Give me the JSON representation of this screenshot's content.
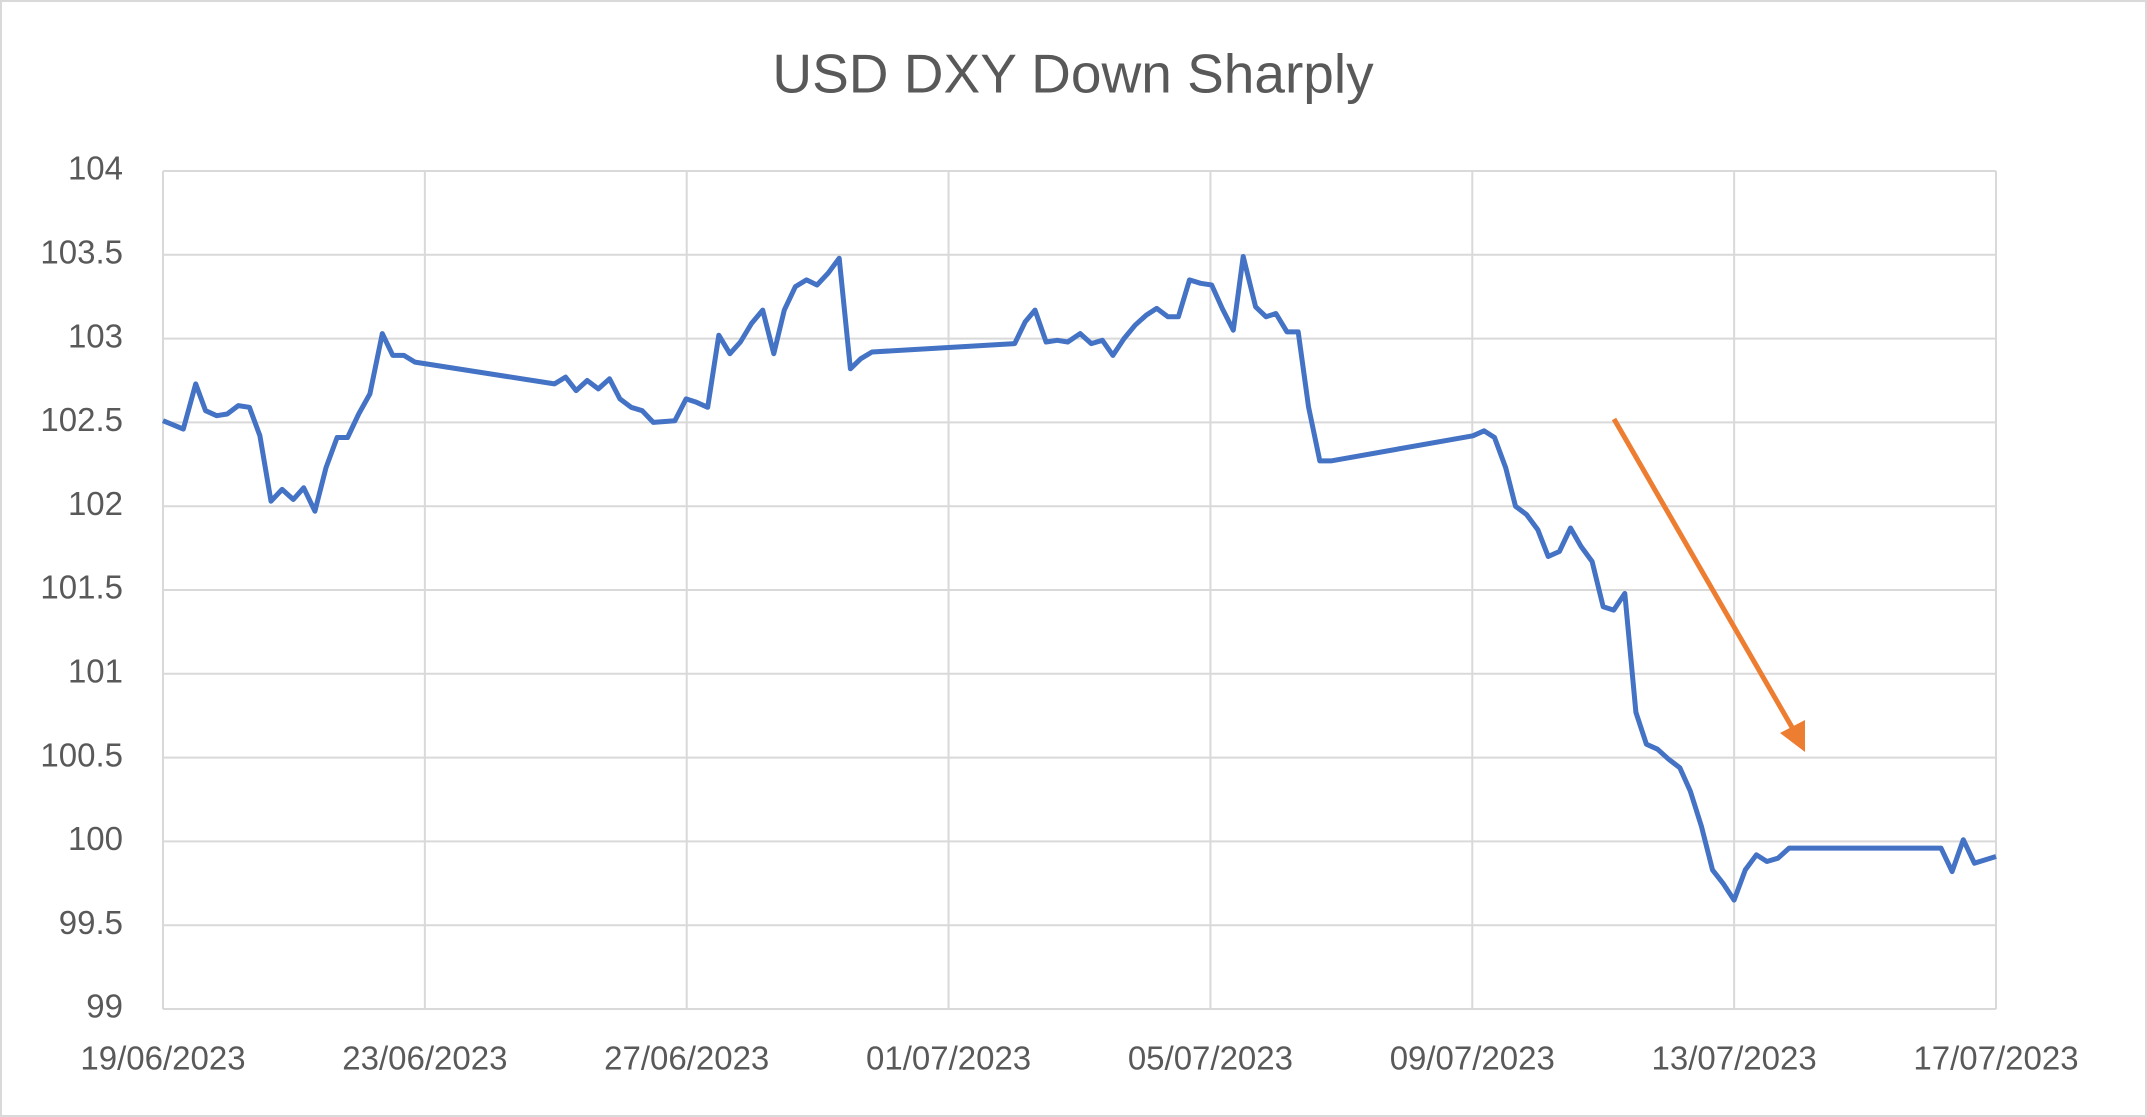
{
  "chart_data": {
    "type": "line",
    "title": "USD DXY Down Sharply",
    "color": "#4472c4",
    "grid": true,
    "x": [
      45096.0,
      45096.31,
      45096.5,
      45096.65,
      45096.82,
      45096.98,
      45097.15,
      45097.32,
      45097.48,
      45097.65,
      45097.82,
      45097.99,
      45098.15,
      45098.32,
      45098.49,
      45098.66,
      45098.82,
      45098.99,
      45099.16,
      45099.35,
      45099.51,
      45099.68,
      45099.85,
      45101.98,
      45102.15,
      45102.31,
      45102.48,
      45102.65,
      45102.82,
      45102.98,
      45103.15,
      45103.32,
      45103.49,
      45103.82,
      45103.99,
      45104.15,
      45104.32,
      45104.49,
      45104.66,
      45104.82,
      45104.99,
      45105.16,
      45105.33,
      45105.49,
      45105.66,
      45105.83,
      45105.99,
      45106.16,
      45106.33,
      45106.5,
      45106.66,
      45106.83,
      45109.01,
      45109.17,
      45109.32,
      45109.49,
      45109.66,
      45109.82,
      45110.01,
      45110.18,
      45110.35,
      45110.51,
      45110.68,
      45110.85,
      45111.02,
      45111.18,
      45111.35,
      45111.51,
      45111.68,
      45111.85,
      45112.02,
      45112.18,
      45112.35,
      45112.5,
      45112.69,
      45112.85,
      45113.0,
      45113.17,
      45113.34,
      45113.5,
      45113.67,
      45113.84,
      45116.01,
      45116.18,
      45116.34,
      45116.51,
      45116.66,
      45116.83,
      45117.0,
      45117.16,
      45117.33,
      45117.5,
      45117.66,
      45117.83,
      45118.0,
      45118.16,
      45118.33,
      45118.5,
      45118.66,
      45118.83,
      45119.0,
      45119.17,
      45119.33,
      45119.5,
      45119.67,
      45119.83,
      45120.0,
      45120.17,
      45120.34,
      45120.5,
      45120.67,
      45120.84,
      45123.16,
      45123.33,
      45123.5,
      45123.67,
      45124.0
    ],
    "values": [
      102.51,
      102.46,
      102.73,
      102.57,
      102.54,
      102.55,
      102.6,
      102.59,
      102.42,
      102.03,
      102.1,
      102.04,
      102.11,
      101.97,
      102.23,
      102.41,
      102.41,
      102.55,
      102.67,
      103.03,
      102.9,
      102.9,
      102.86,
      102.73,
      102.77,
      102.69,
      102.75,
      102.7,
      102.76,
      102.64,
      102.59,
      102.57,
      102.5,
      102.51,
      102.64,
      102.62,
      102.59,
      103.02,
      102.91,
      102.98,
      103.09,
      103.17,
      102.91,
      103.17,
      103.31,
      103.35,
      103.32,
      103.39,
      103.48,
      102.82,
      102.88,
      102.92,
      102.97,
      103.1,
      103.17,
      102.98,
      102.99,
      102.98,
      103.03,
      102.97,
      102.99,
      102.9,
      103.0,
      103.08,
      103.14,
      103.18,
      103.13,
      103.13,
      103.35,
      103.33,
      103.32,
      103.18,
      103.05,
      103.49,
      103.19,
      103.13,
      103.15,
      103.04,
      103.04,
      102.59,
      102.27,
      102.27,
      102.42,
      102.45,
      102.41,
      102.23,
      102.0,
      101.95,
      101.86,
      101.7,
      101.73,
      101.87,
      101.76,
      101.67,
      101.4,
      101.38,
      101.48,
      100.77,
      100.58,
      100.55,
      100.49,
      100.44,
      100.3,
      100.09,
      99.83,
      99.75,
      99.65,
      99.83,
      99.92,
      99.88,
      99.9,
      99.96,
      99.96,
      99.82,
      100.01,
      99.87,
      99.91
    ],
    "xlim": [
      45096,
      45124
    ],
    "xticks": [
      {
        "value": 45096,
        "label": "19/06/2023"
      },
      {
        "value": 45100,
        "label": "23/06/2023"
      },
      {
        "value": 45104,
        "label": "27/06/2023"
      },
      {
        "value": 45108,
        "label": "01/07/2023"
      },
      {
        "value": 45112,
        "label": "05/07/2023"
      },
      {
        "value": 45116,
        "label": "09/07/2023"
      },
      {
        "value": 45120,
        "label": "13/07/2023"
      },
      {
        "value": 45124,
        "label": "17/07/2023"
      }
    ],
    "ylim": [
      99,
      104
    ],
    "yticks": [
      99,
      99.5,
      100,
      100.5,
      101,
      101.5,
      102,
      102.5,
      103,
      103.5,
      104
    ]
  }
}
